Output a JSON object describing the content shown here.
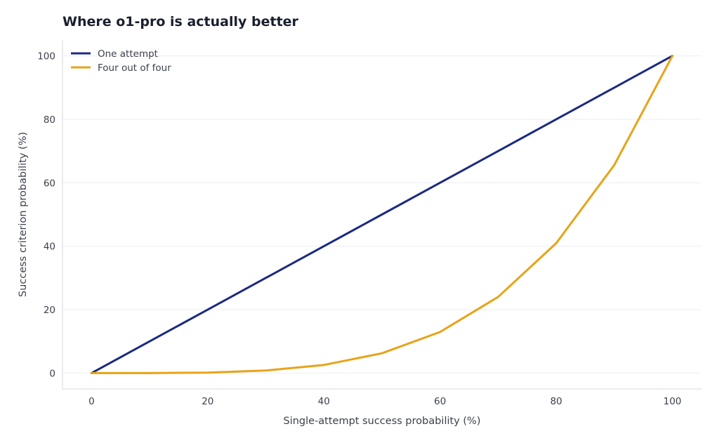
{
  "chart_data": {
    "type": "line",
    "title": "Where o1-pro is actually better",
    "xlabel": "Single-attempt success probability (%)",
    "ylabel": "Success criterion probability (%)",
    "x": [
      0,
      10,
      20,
      30,
      40,
      50,
      60,
      70,
      80,
      90,
      100
    ],
    "xlim": [
      -5,
      105
    ],
    "ylim": [
      -5,
      105
    ],
    "x_ticks": [
      0,
      20,
      40,
      60,
      80,
      100
    ],
    "y_ticks": [
      0,
      20,
      40,
      60,
      80,
      100
    ],
    "grid": "horizontal",
    "legend_position": "top-left",
    "series": [
      {
        "name": "One attempt",
        "color": "#1b2a80",
        "values": [
          0,
          10,
          20,
          30,
          40,
          50,
          60,
          70,
          80,
          90,
          100
        ]
      },
      {
        "name": "Four out of four",
        "color": "#e8a317",
        "values": [
          0,
          0.01,
          0.16,
          0.81,
          2.56,
          6.25,
          12.96,
          24.01,
          40.96,
          65.61,
          100
        ]
      }
    ]
  }
}
